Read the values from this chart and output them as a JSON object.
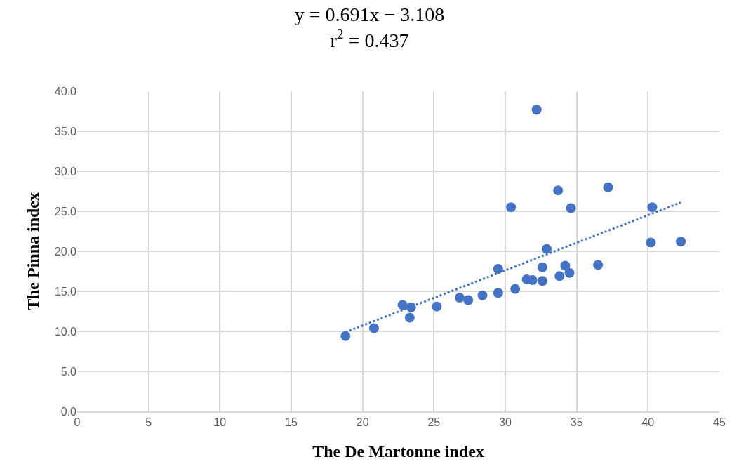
{
  "chart_data": {
    "type": "scatter",
    "title": "y = 0.691x − 3.108\nr$^{2}$ = 0.437",
    "xlabel": "The De Martonne index",
    "ylabel": "The Pinna index",
    "xlim": [
      0,
      45
    ],
    "xticks": [
      0,
      5,
      10,
      15,
      20,
      25,
      30,
      35,
      40,
      45
    ],
    "ylim": [
      0,
      40
    ],
    "yticks": [
      {
        "value": 0,
        "label": "0.0"
      },
      {
        "value": 5,
        "label": "5.0"
      },
      {
        "value": 10,
        "label": "10.0"
      },
      {
        "value": 15,
        "label": "15.0"
      },
      {
        "value": 20,
        "label": "20.0"
      },
      {
        "value": 25,
        "label": "25.0"
      },
      {
        "value": 30,
        "label": "30.0"
      },
      {
        "value": 35,
        "label": "35.0"
      },
      {
        "value": 40,
        "label": "40.0"
      }
    ],
    "grid": true,
    "marker": "circle",
    "series": [
      {
        "color": "#4472c4",
        "x": [
          18.8,
          20.8,
          22.8,
          23.4,
          23.3,
          25.2,
          26.8,
          27.4,
          28.4,
          29.5,
          29.5,
          30.7,
          31.5,
          31.9,
          32.6,
          32.6,
          32.9,
          33.8,
          34.2,
          34.5,
          30.4,
          33.7,
          34.6,
          37.2,
          36.5,
          40.2,
          40.3,
          42.3,
          32.2
        ],
        "values": [
          9.4,
          10.4,
          13.3,
          13.0,
          11.7,
          13.1,
          14.2,
          13.9,
          14.5,
          14.8,
          17.8,
          15.3,
          16.5,
          16.4,
          18.0,
          16.3,
          20.3,
          16.9,
          18.2,
          17.3,
          25.5,
          27.6,
          25.4,
          28.0,
          18.3,
          21.1,
          25.5,
          21.2,
          37.7
        ]
      },
      {
        "type": "line",
        "color": "#4472c4",
        "marker": "none",
        "line_style": "dotted",
        "x": [
          18.8,
          42.3
        ],
        "values": [
          9.9,
          26.1
        ]
      }
    ]
  }
}
